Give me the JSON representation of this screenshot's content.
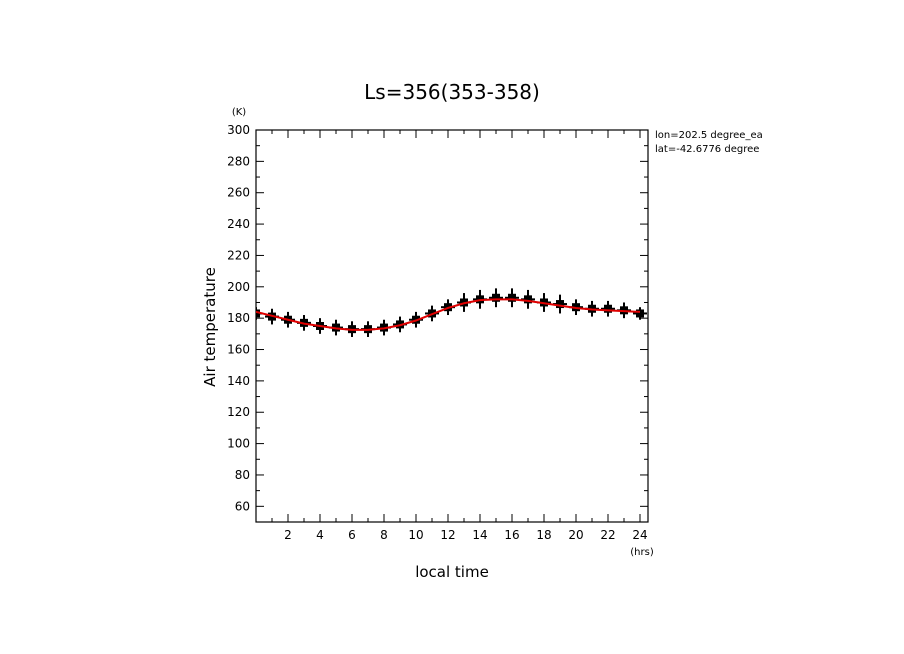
{
  "chart_data": {
    "type": "line",
    "title": "Ls=356(353-358)",
    "xlabel": "local time",
    "ylabel": "Air temperature",
    "x_unit": "(hrs)",
    "y_unit": "(K)",
    "xlim": [
      0,
      24.5
    ],
    "ylim": [
      50,
      300
    ],
    "x_ticks": [
      2,
      4,
      6,
      8,
      10,
      12,
      14,
      16,
      18,
      20,
      22,
      24
    ],
    "y_ticks": [
      60,
      80,
      100,
      120,
      140,
      160,
      180,
      200,
      220,
      240,
      260,
      280,
      300
    ],
    "annotations": [
      "lon=202.5 degree_ea",
      "lat=-42.6776 degree"
    ],
    "line_color": "#e00000",
    "marker_color": "#000000",
    "series": [
      {
        "style": "observations",
        "x": [
          0,
          1,
          2,
          3,
          4,
          5,
          6,
          7,
          8,
          9,
          10,
          11,
          12,
          13,
          14,
          15,
          16,
          17,
          18,
          19,
          20,
          21,
          22,
          23,
          24
        ],
        "values": [
          183,
          181,
          179,
          177,
          175,
          174,
          173,
          173,
          174,
          176,
          179,
          183,
          187,
          190,
          192,
          193,
          193,
          192,
          190,
          189,
          187,
          186,
          186,
          185,
          183
        ],
        "error": [
          2,
          3,
          3,
          3,
          3,
          3,
          3,
          3,
          3,
          3,
          3,
          3,
          3,
          4,
          4,
          4,
          4,
          4,
          4,
          4,
          3,
          3,
          3,
          3,
          2
        ]
      },
      {
        "style": "fit",
        "x": [
          0,
          1,
          2,
          3,
          4,
          5,
          6,
          7,
          8,
          9,
          10,
          11,
          12,
          13,
          14,
          15,
          16,
          17,
          18,
          19,
          20,
          21,
          22,
          23,
          24
        ],
        "values": [
          184,
          181.5,
          179,
          176.5,
          175,
          173.5,
          172.5,
          172.5,
          173.5,
          175.5,
          178.5,
          182.5,
          186.5,
          189.5,
          191.5,
          192,
          192,
          191,
          189.5,
          188,
          186.5,
          185.5,
          185,
          184.5,
          184
        ]
      }
    ]
  }
}
